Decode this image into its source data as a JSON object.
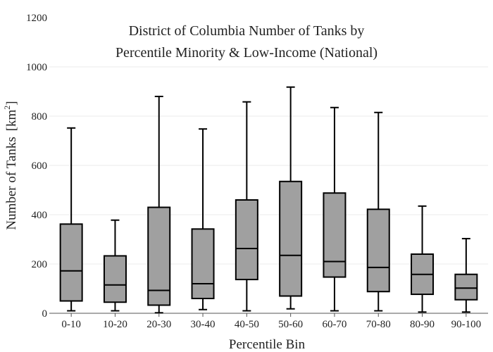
{
  "chart_data": {
    "type": "box",
    "title_lines": [
      "District of Columbia Number of Tanks by",
      "Percentile Minority & Low-Income (National)"
    ],
    "xlabel": "Percentile Bin",
    "ylabel": "Number of Tanks",
    "ylabel_unit_base": "[km",
    "ylabel_unit_sup": "2",
    "ylabel_unit_close": "]",
    "ylim": [
      0,
      1200
    ],
    "yticks": [
      0,
      200,
      400,
      600,
      800,
      1000,
      1200
    ],
    "ytick_labels": [
      "0",
      "200",
      "400",
      "600",
      "800",
      "1000",
      "1200"
    ],
    "grid": true,
    "categories": [
      "0-10",
      "10-20",
      "20-30",
      "30-40",
      "40-50",
      "50-60",
      "60-70",
      "70-80",
      "80-90",
      "90-100"
    ],
    "boxes": [
      {
        "min": 10,
        "q1": 50,
        "median": 172,
        "q3": 362,
        "max": 752
      },
      {
        "min": 10,
        "q1": 45,
        "median": 115,
        "q3": 233,
        "max": 378
      },
      {
        "min": 2,
        "q1": 33,
        "median": 93,
        "q3": 430,
        "max": 880
      },
      {
        "min": 15,
        "q1": 60,
        "median": 120,
        "q3": 342,
        "max": 748
      },
      {
        "min": 10,
        "q1": 137,
        "median": 263,
        "q3": 460,
        "max": 858
      },
      {
        "min": 18,
        "q1": 70,
        "median": 235,
        "q3": 535,
        "max": 918
      },
      {
        "min": 10,
        "q1": 147,
        "median": 210,
        "q3": 488,
        "max": 835
      },
      {
        "min": 10,
        "q1": 88,
        "median": 186,
        "q3": 422,
        "max": 815
      },
      {
        "min": 5,
        "q1": 77,
        "median": 158,
        "q3": 240,
        "max": 435
      },
      {
        "min": 5,
        "q1": 55,
        "median": 102,
        "q3": 158,
        "max": 303
      }
    ],
    "box_color": "#a0a0a0",
    "line_color": "#000000"
  }
}
